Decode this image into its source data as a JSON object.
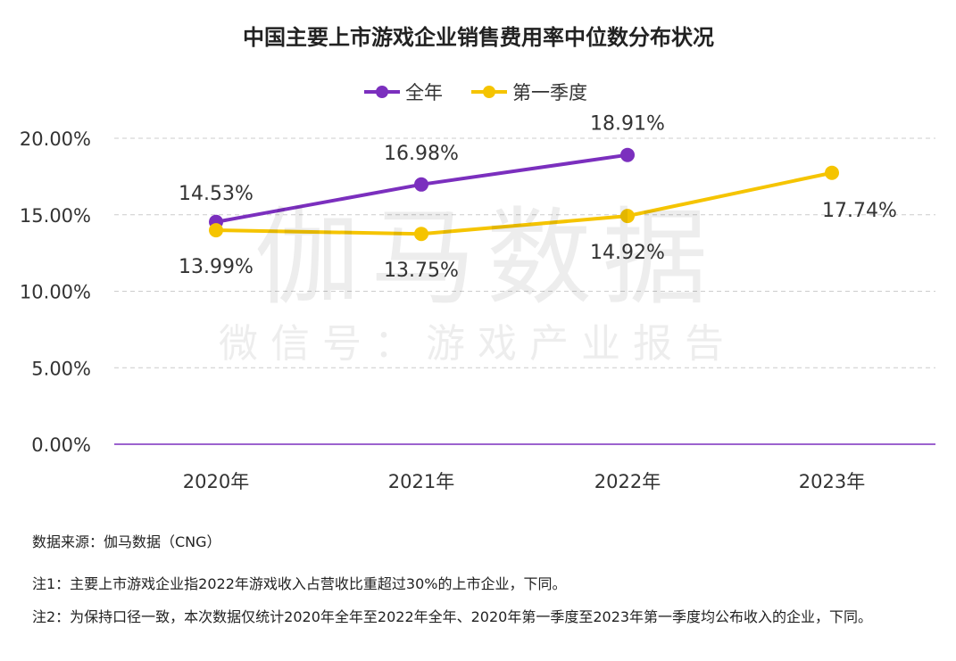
{
  "chart_data": {
    "type": "line",
    "title": "中国主要上市游戏企业销售费用率中位数分布状况",
    "categories": [
      "2020年",
      "2021年",
      "2022年",
      "2023年"
    ],
    "series": [
      {
        "name": "全年",
        "values": [
          14.53,
          16.98,
          18.91,
          null
        ],
        "labels": [
          "14.53%",
          "16.98%",
          "18.91%",
          ""
        ],
        "color": "#7B2FBE"
      },
      {
        "name": "第一季度",
        "values": [
          13.99,
          13.75,
          14.92,
          17.74
        ],
        "labels": [
          "13.99%",
          "13.75%",
          "14.92%",
          "17.74%"
        ],
        "color": "#F5C400"
      }
    ],
    "yticks": [
      "0.00%",
      "5.00%",
      "10.00%",
      "15.00%",
      "20.00%"
    ],
    "ytick_values": [
      0,
      5,
      10,
      15,
      20
    ],
    "ylim": [
      0,
      20
    ],
    "grid": "horizontal dashed",
    "legend": "top-center",
    "axis_color": "#7B2FBE"
  },
  "watermark": {
    "main": "伽马数据",
    "sub": "微信号：游戏产业报告"
  },
  "notes": {
    "source": "数据来源：伽马数据（CNG）",
    "note1": "注1：主要上市游戏企业指2022年游戏收入占营收比重超过30%的上市企业，下同。",
    "note2": "注2：为保持口径一致，本次数据仅统计2020年全年至2022年全年、2020年第一季度至2023年第一季度均公布收入的企业，下同。"
  }
}
